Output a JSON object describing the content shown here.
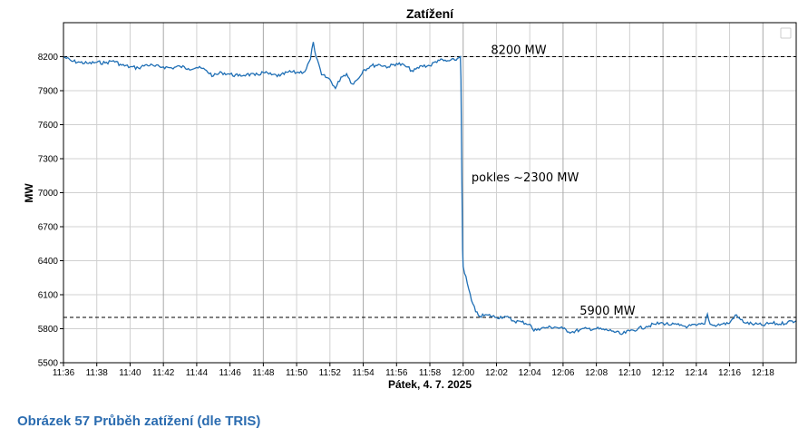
{
  "chart_data": {
    "type": "line",
    "title": "Zatížení",
    "xlabel": "Pátek, 4. 7. 2025",
    "ylabel": "MW",
    "x_range": [
      "11:36",
      "12:20"
    ],
    "ylim": [
      5500,
      8500
    ],
    "yticks": [
      5500,
      5800,
      6100,
      6400,
      6700,
      7000,
      7300,
      7600,
      7900,
      8200
    ],
    "xticks": [
      "11:36",
      "11:38",
      "11:40",
      "11:42",
      "11:44",
      "11:46",
      "11:48",
      "11:50",
      "11:52",
      "11:54",
      "11:56",
      "11:58",
      "12:00",
      "12:02",
      "12:04",
      "12:06",
      "12:08",
      "12:10",
      "12:12",
      "12:14",
      "12:16",
      "12:18"
    ],
    "grid": true,
    "legend": "top-right (empty)",
    "series_color": "#1f6fb5",
    "series": [
      {
        "points": [
          [
            "11:36:00",
            8200
          ],
          [
            "11:36:30",
            8160
          ],
          [
            "11:37:00",
            8150
          ],
          [
            "11:37:30",
            8140
          ],
          [
            "11:38:00",
            8150
          ],
          [
            "11:38:30",
            8145
          ],
          [
            "11:39:00",
            8165
          ],
          [
            "11:39:30",
            8125
          ],
          [
            "11:40:00",
            8110
          ],
          [
            "11:40:30",
            8100
          ],
          [
            "11:41:00",
            8130
          ],
          [
            "11:41:30",
            8115
          ],
          [
            "11:42:00",
            8110
          ],
          [
            "11:42:30",
            8100
          ],
          [
            "11:43:00",
            8115
          ],
          [
            "11:43:30",
            8095
          ],
          [
            "11:44:00",
            8105
          ],
          [
            "11:44:30",
            8085
          ],
          [
            "11:45:00",
            8030
          ],
          [
            "11:45:30",
            8060
          ],
          [
            "11:46:00",
            8045
          ],
          [
            "11:46:30",
            8030
          ],
          [
            "11:47:00",
            8045
          ],
          [
            "11:47:30",
            8035
          ],
          [
            "11:48:00",
            8060
          ],
          [
            "11:48:30",
            8040
          ],
          [
            "11:49:00",
            8030
          ],
          [
            "11:49:30",
            8065
          ],
          [
            "11:50:00",
            8060
          ],
          [
            "11:50:30",
            8070
          ],
          [
            "11:50:50",
            8180
          ],
          [
            "11:51:00",
            8330
          ],
          [
            "11:51:10",
            8200
          ],
          [
            "11:51:30",
            8040
          ],
          [
            "11:52:00",
            8000
          ],
          [
            "11:52:20",
            7920
          ],
          [
            "11:52:40",
            8020
          ],
          [
            "11:53:00",
            8050
          ],
          [
            "11:53:20",
            7960
          ],
          [
            "11:53:40",
            8000
          ],
          [
            "11:54:00",
            8080
          ],
          [
            "11:54:30",
            8120
          ],
          [
            "11:55:00",
            8130
          ],
          [
            "11:55:30",
            8110
          ],
          [
            "11:56:00",
            8140
          ],
          [
            "11:56:30",
            8120
          ],
          [
            "11:57:00",
            8070
          ],
          [
            "11:57:30",
            8120
          ],
          [
            "11:58:00",
            8120
          ],
          [
            "11:58:30",
            8170
          ],
          [
            "11:59:00",
            8160
          ],
          [
            "11:59:30",
            8170
          ],
          [
            "11:59:50",
            8200
          ],
          [
            "11:59:52",
            8000
          ],
          [
            "11:59:55",
            7200
          ],
          [
            "11:59:58",
            6500
          ],
          [
            "12:00:00",
            6350
          ],
          [
            "12:00:15",
            6200
          ],
          [
            "12:00:30",
            6050
          ],
          [
            "12:00:45",
            5950
          ],
          [
            "12:01:00",
            5910
          ],
          [
            "12:01:30",
            5920
          ],
          [
            "12:02:00",
            5900
          ],
          [
            "12:02:30",
            5910
          ],
          [
            "12:03:00",
            5870
          ],
          [
            "12:03:30",
            5860
          ],
          [
            "12:04:00",
            5840
          ],
          [
            "12:04:15",
            5780
          ],
          [
            "12:04:30",
            5800
          ],
          [
            "12:05:00",
            5810
          ],
          [
            "12:05:30",
            5815
          ],
          [
            "12:06:00",
            5800
          ],
          [
            "12:06:30",
            5770
          ],
          [
            "12:07:00",
            5790
          ],
          [
            "12:07:30",
            5800
          ],
          [
            "12:08:00",
            5800
          ],
          [
            "12:08:30",
            5790
          ],
          [
            "12:09:00",
            5780
          ],
          [
            "12:09:30",
            5750
          ],
          [
            "12:10:00",
            5780
          ],
          [
            "12:10:30",
            5800
          ],
          [
            "12:11:00",
            5820
          ],
          [
            "12:11:30",
            5840
          ],
          [
            "12:12:00",
            5850
          ],
          [
            "12:12:30",
            5835
          ],
          [
            "12:13:00",
            5830
          ],
          [
            "12:13:30",
            5820
          ],
          [
            "12:14:00",
            5830
          ],
          [
            "12:14:30",
            5840
          ],
          [
            "12:14:40",
            5930
          ],
          [
            "12:14:50",
            5840
          ],
          [
            "12:15:00",
            5830
          ],
          [
            "12:15:30",
            5840
          ],
          [
            "12:16:00",
            5850
          ],
          [
            "12:16:20",
            5920
          ],
          [
            "12:16:40",
            5880
          ],
          [
            "12:17:00",
            5850
          ],
          [
            "12:17:30",
            5840
          ],
          [
            "12:18:00",
            5830
          ],
          [
            "12:18:30",
            5850
          ],
          [
            "12:19:00",
            5840
          ],
          [
            "12:19:30",
            5860
          ],
          [
            "12:20:00",
            5870
          ]
        ]
      }
    ],
    "reference_lines": [
      {
        "y": 8200,
        "label": "8200 MW",
        "label_x": "12:01:40"
      },
      {
        "y": 5900,
        "label": "5900 MW",
        "label_x": "12:07:00"
      }
    ],
    "annotations": [
      {
        "text": "pokles ~2300 MW",
        "x": "12:00:30",
        "y": 7140
      }
    ]
  },
  "caption": "Obrázek 57 Průběh zatížení (dle TRIS)"
}
